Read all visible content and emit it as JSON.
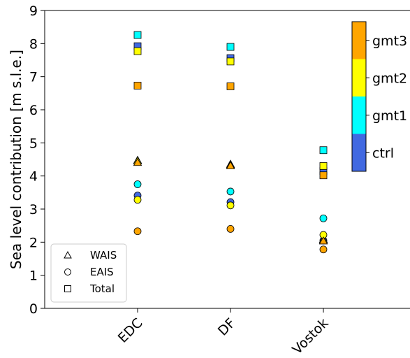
{
  "chart_data": {
    "type": "scatter",
    "title": "",
    "xlabel": "",
    "ylabel": "Sea level contribution [m s.l.e.]",
    "ylim": [
      0,
      9
    ],
    "yticks": [
      0,
      1,
      2,
      3,
      4,
      5,
      6,
      7,
      8,
      9
    ],
    "categories": [
      "EDC",
      "DF",
      "Vostok"
    ],
    "grid": false,
    "legend": {
      "placement": "bottom-left",
      "entries": [
        {
          "label": "WAIS",
          "marker": "triangle"
        },
        {
          "label": "EAIS",
          "marker": "circle"
        },
        {
          "label": "Total",
          "marker": "square"
        }
      ]
    },
    "colorbar": {
      "placement": "right",
      "levels": [
        {
          "label": "ctrl",
          "color": "#4169E1"
        },
        {
          "label": "gmt1",
          "color": "#00FFFF"
        },
        {
          "label": "gmt2",
          "color": "#FFFF00"
        },
        {
          "label": "gmt3",
          "color": "#FFA500"
        }
      ]
    },
    "series": [
      {
        "level": "ctrl",
        "color": "#4169E1",
        "WAIS": [
          4.45,
          4.33,
          2.05
        ],
        "EAIS": [
          3.41,
          3.21,
          2.05
        ],
        "Total": [
          7.92,
          7.56,
          4.15
        ]
      },
      {
        "level": "gmt1",
        "color": "#00FFFF",
        "WAIS": [
          4.47,
          4.35,
          2.08
        ],
        "EAIS": [
          3.75,
          3.53,
          2.72
        ],
        "Total": [
          8.26,
          7.9,
          4.78
        ]
      },
      {
        "level": "gmt2",
        "color": "#FFFF00",
        "WAIS": [
          4.45,
          4.33,
          2.07
        ],
        "EAIS": [
          3.28,
          3.11,
          2.22
        ],
        "Total": [
          7.77,
          7.46,
          4.3
        ]
      },
      {
        "level": "gmt3",
        "color": "#FFA500",
        "WAIS": [
          4.4,
          4.3,
          2.03
        ],
        "EAIS": [
          2.33,
          2.4,
          1.78
        ],
        "Total": [
          6.73,
          6.71,
          4.02
        ]
      }
    ]
  }
}
